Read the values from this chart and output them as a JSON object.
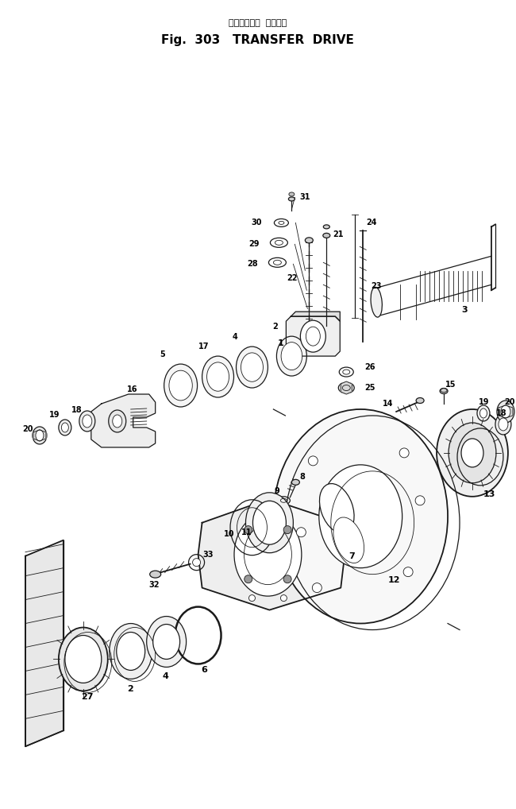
{
  "title_japanese": "トランスファ  ドライブ",
  "title_english": "Fig.  303   TRANSFER  DRIVE",
  "bg_color": "#ffffff",
  "line_color": "#1a1a1a",
  "figsize": [
    6.5,
    10.18
  ],
  "dpi": 100
}
